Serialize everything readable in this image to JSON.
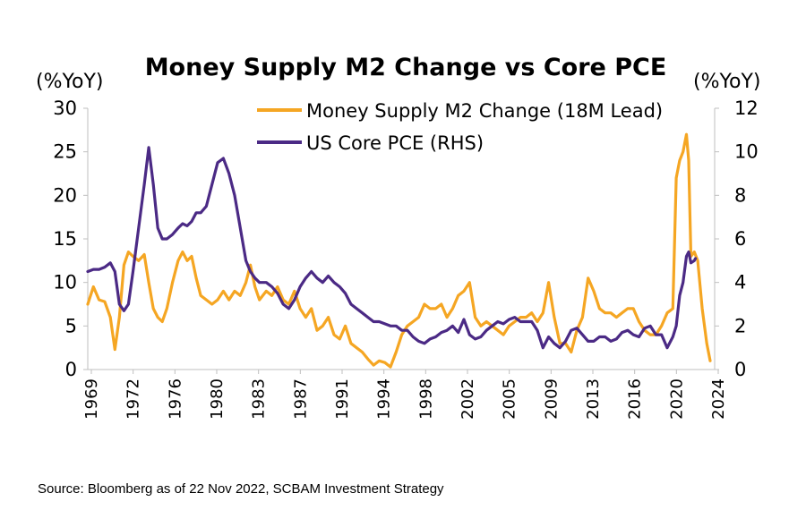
{
  "chart_data": {
    "type": "line",
    "title": "Money Supply M2 Change vs Core PCE",
    "left_axis_label": "(%YoY)",
    "right_axis_label": "(%YoY)",
    "ylim_left": [
      0,
      30
    ],
    "ylim_right": [
      0,
      12
    ],
    "yticks_left": [
      "0",
      "5",
      "10",
      "15",
      "20",
      "25",
      "30"
    ],
    "yticks_right": [
      "0",
      "2",
      "4",
      "6",
      "8",
      "10",
      "12"
    ],
    "xlim": [
      1969,
      2024.5
    ],
    "xticks": [
      "1969",
      "1972",
      "1976",
      "1980",
      "1983",
      "1987",
      "1991",
      "1994",
      "1998",
      "2002",
      "2005",
      "2009",
      "2013",
      "2016",
      "2020",
      "2024"
    ],
    "grid": false,
    "legend_position": "top-right",
    "series": [
      {
        "name": "Money Supply M2 Change (18M Lead)",
        "color": "#F5A623",
        "axis": "left",
        "points": [
          [
            1969.0,
            7.5
          ],
          [
            1969.5,
            9.5
          ],
          [
            1970.0,
            8.0
          ],
          [
            1970.5,
            7.8
          ],
          [
            1971.0,
            6.0
          ],
          [
            1971.4,
            2.3
          ],
          [
            1971.8,
            6.0
          ],
          [
            1972.2,
            12.0
          ],
          [
            1972.6,
            13.5
          ],
          [
            1973.0,
            13.0
          ],
          [
            1973.5,
            12.5
          ],
          [
            1974.0,
            13.2
          ],
          [
            1974.4,
            10.0
          ],
          [
            1974.8,
            7.0
          ],
          [
            1975.2,
            6.0
          ],
          [
            1975.6,
            5.5
          ],
          [
            1976.0,
            7.0
          ],
          [
            1976.5,
            10.0
          ],
          [
            1977.0,
            12.5
          ],
          [
            1977.4,
            13.5
          ],
          [
            1977.8,
            12.5
          ],
          [
            1978.2,
            13.0
          ],
          [
            1978.6,
            10.5
          ],
          [
            1979.0,
            8.5
          ],
          [
            1979.5,
            8.0
          ],
          [
            1980.0,
            7.5
          ],
          [
            1980.5,
            8.0
          ],
          [
            1981.0,
            9.0
          ],
          [
            1981.5,
            8.0
          ],
          [
            1982.0,
            9.0
          ],
          [
            1982.5,
            8.5
          ],
          [
            1983.0,
            10.0
          ],
          [
            1983.4,
            12.0
          ],
          [
            1983.8,
            9.5
          ],
          [
            1984.2,
            8.0
          ],
          [
            1984.8,
            9.0
          ],
          [
            1985.3,
            8.5
          ],
          [
            1985.8,
            9.5
          ],
          [
            1986.3,
            8.0
          ],
          [
            1986.8,
            7.5
          ],
          [
            1987.3,
            9.0
          ],
          [
            1987.8,
            7.0
          ],
          [
            1988.3,
            6.0
          ],
          [
            1988.8,
            7.0
          ],
          [
            1989.3,
            4.5
          ],
          [
            1989.8,
            5.0
          ],
          [
            1990.3,
            6.0
          ],
          [
            1990.8,
            4.0
          ],
          [
            1991.3,
            3.5
          ],
          [
            1991.8,
            5.0
          ],
          [
            1992.3,
            3.0
          ],
          [
            1992.8,
            2.5
          ],
          [
            1993.3,
            2.0
          ],
          [
            1993.8,
            1.2
          ],
          [
            1994.3,
            0.5
          ],
          [
            1994.8,
            1.0
          ],
          [
            1995.3,
            0.8
          ],
          [
            1995.8,
            0.3
          ],
          [
            1996.3,
            2.0
          ],
          [
            1996.8,
            4.0
          ],
          [
            1997.3,
            5.0
          ],
          [
            1997.8,
            5.5
          ],
          [
            1998.3,
            6.0
          ],
          [
            1998.8,
            7.5
          ],
          [
            1999.3,
            7.0
          ],
          [
            1999.8,
            7.0
          ],
          [
            2000.3,
            7.5
          ],
          [
            2000.8,
            6.0
          ],
          [
            2001.3,
            7.0
          ],
          [
            2001.8,
            8.5
          ],
          [
            2002.3,
            9.0
          ],
          [
            2002.8,
            10.0
          ],
          [
            2003.3,
            6.0
          ],
          [
            2003.8,
            5.0
          ],
          [
            2004.3,
            5.5
          ],
          [
            2004.8,
            5.0
          ],
          [
            2005.3,
            4.5
          ],
          [
            2005.8,
            4.0
          ],
          [
            2006.3,
            5.0
          ],
          [
            2006.8,
            5.5
          ],
          [
            2007.3,
            6.0
          ],
          [
            2007.8,
            6.0
          ],
          [
            2008.3,
            6.5
          ],
          [
            2008.8,
            5.5
          ],
          [
            2009.3,
            6.5
          ],
          [
            2009.8,
            10.0
          ],
          [
            2010.3,
            6.0
          ],
          [
            2010.8,
            3.0
          ],
          [
            2011.3,
            3.0
          ],
          [
            2011.8,
            2.0
          ],
          [
            2012.3,
            4.5
          ],
          [
            2012.8,
            6.0
          ],
          [
            2013.3,
            10.5
          ],
          [
            2013.8,
            9.0
          ],
          [
            2014.3,
            7.0
          ],
          [
            2014.8,
            6.5
          ],
          [
            2015.3,
            6.5
          ],
          [
            2015.8,
            6.0
          ],
          [
            2016.3,
            6.5
          ],
          [
            2016.8,
            7.0
          ],
          [
            2017.3,
            7.0
          ],
          [
            2017.8,
            5.5
          ],
          [
            2018.3,
            4.5
          ],
          [
            2018.8,
            4.0
          ],
          [
            2019.3,
            4.0
          ],
          [
            2019.8,
            5.0
          ],
          [
            2020.3,
            6.5
          ],
          [
            2020.8,
            7.0
          ],
          [
            2021.1,
            22.0
          ],
          [
            2021.4,
            24.0
          ],
          [
            2021.7,
            25.0
          ],
          [
            2022.0,
            27.0
          ],
          [
            2022.2,
            24.0
          ],
          [
            2022.4,
            13.0
          ],
          [
            2022.7,
            13.5
          ],
          [
            2023.0,
            12.5
          ],
          [
            2023.4,
            7.0
          ],
          [
            2023.8,
            3.0
          ],
          [
            2024.1,
            1.0
          ]
        ]
      },
      {
        "name": "US Core PCE (RHS)",
        "color": "#4B2A85",
        "axis": "right",
        "points": [
          [
            1969.0,
            4.5
          ],
          [
            1969.5,
            4.6
          ],
          [
            1970.0,
            4.6
          ],
          [
            1970.5,
            4.7
          ],
          [
            1971.0,
            4.9
          ],
          [
            1971.4,
            4.5
          ],
          [
            1971.8,
            3.0
          ],
          [
            1972.2,
            2.7
          ],
          [
            1972.6,
            3.0
          ],
          [
            1973.0,
            4.5
          ],
          [
            1973.5,
            6.5
          ],
          [
            1974.0,
            8.5
          ],
          [
            1974.4,
            10.2
          ],
          [
            1974.8,
            8.5
          ],
          [
            1975.2,
            6.5
          ],
          [
            1975.6,
            6.0
          ],
          [
            1976.0,
            6.0
          ],
          [
            1976.5,
            6.2
          ],
          [
            1977.0,
            6.5
          ],
          [
            1977.4,
            6.7
          ],
          [
            1977.8,
            6.6
          ],
          [
            1978.2,
            6.8
          ],
          [
            1978.6,
            7.2
          ],
          [
            1979.0,
            7.2
          ],
          [
            1979.5,
            7.5
          ],
          [
            1980.0,
            8.5
          ],
          [
            1980.5,
            9.5
          ],
          [
            1981.0,
            9.7
          ],
          [
            1981.5,
            9.0
          ],
          [
            1982.0,
            8.0
          ],
          [
            1982.5,
            6.5
          ],
          [
            1983.0,
            5.0
          ],
          [
            1983.4,
            4.5
          ],
          [
            1983.8,
            4.2
          ],
          [
            1984.2,
            4.0
          ],
          [
            1984.8,
            4.0
          ],
          [
            1985.3,
            3.8
          ],
          [
            1985.8,
            3.5
          ],
          [
            1986.3,
            3.0
          ],
          [
            1986.8,
            2.8
          ],
          [
            1987.3,
            3.2
          ],
          [
            1987.8,
            3.8
          ],
          [
            1988.3,
            4.2
          ],
          [
            1988.8,
            4.5
          ],
          [
            1989.3,
            4.2
          ],
          [
            1989.8,
            4.0
          ],
          [
            1990.3,
            4.3
          ],
          [
            1990.8,
            4.0
          ],
          [
            1991.3,
            3.8
          ],
          [
            1991.8,
            3.5
          ],
          [
            1992.3,
            3.0
          ],
          [
            1992.8,
            2.8
          ],
          [
            1993.3,
            2.6
          ],
          [
            1993.8,
            2.4
          ],
          [
            1994.3,
            2.2
          ],
          [
            1994.8,
            2.2
          ],
          [
            1995.3,
            2.1
          ],
          [
            1995.8,
            2.0
          ],
          [
            1996.3,
            2.0
          ],
          [
            1996.8,
            1.8
          ],
          [
            1997.3,
            1.8
          ],
          [
            1997.8,
            1.5
          ],
          [
            1998.3,
            1.3
          ],
          [
            1998.8,
            1.2
          ],
          [
            1999.3,
            1.4
          ],
          [
            1999.8,
            1.5
          ],
          [
            2000.3,
            1.7
          ],
          [
            2000.8,
            1.8
          ],
          [
            2001.3,
            2.0
          ],
          [
            2001.8,
            1.7
          ],
          [
            2002.3,
            2.3
          ],
          [
            2002.8,
            1.6
          ],
          [
            2003.3,
            1.4
          ],
          [
            2003.8,
            1.5
          ],
          [
            2004.3,
            1.8
          ],
          [
            2004.8,
            2.0
          ],
          [
            2005.3,
            2.2
          ],
          [
            2005.8,
            2.1
          ],
          [
            2006.3,
            2.3
          ],
          [
            2006.8,
            2.4
          ],
          [
            2007.3,
            2.2
          ],
          [
            2007.8,
            2.2
          ],
          [
            2008.3,
            2.2
          ],
          [
            2008.8,
            1.8
          ],
          [
            2009.3,
            1.0
          ],
          [
            2009.8,
            1.5
          ],
          [
            2010.3,
            1.2
          ],
          [
            2010.8,
            1.0
          ],
          [
            2011.3,
            1.3
          ],
          [
            2011.8,
            1.8
          ],
          [
            2012.3,
            1.9
          ],
          [
            2012.8,
            1.6
          ],
          [
            2013.3,
            1.3
          ],
          [
            2013.8,
            1.3
          ],
          [
            2014.3,
            1.5
          ],
          [
            2014.8,
            1.5
          ],
          [
            2015.3,
            1.3
          ],
          [
            2015.8,
            1.4
          ],
          [
            2016.3,
            1.7
          ],
          [
            2016.8,
            1.8
          ],
          [
            2017.3,
            1.6
          ],
          [
            2017.8,
            1.5
          ],
          [
            2018.3,
            1.9
          ],
          [
            2018.8,
            2.0
          ],
          [
            2019.3,
            1.6
          ],
          [
            2019.8,
            1.6
          ],
          [
            2020.3,
            1.0
          ],
          [
            2020.8,
            1.5
          ],
          [
            2021.1,
            2.0
          ],
          [
            2021.4,
            3.4
          ],
          [
            2021.7,
            4.0
          ],
          [
            2022.0,
            5.2
          ],
          [
            2022.2,
            5.4
          ],
          [
            2022.4,
            4.9
          ],
          [
            2022.7,
            5.0
          ],
          [
            2022.8,
            5.1
          ]
        ]
      }
    ]
  },
  "source": "Source: Bloomberg as of 22 Nov 2022, SCBAM Investment Strategy"
}
